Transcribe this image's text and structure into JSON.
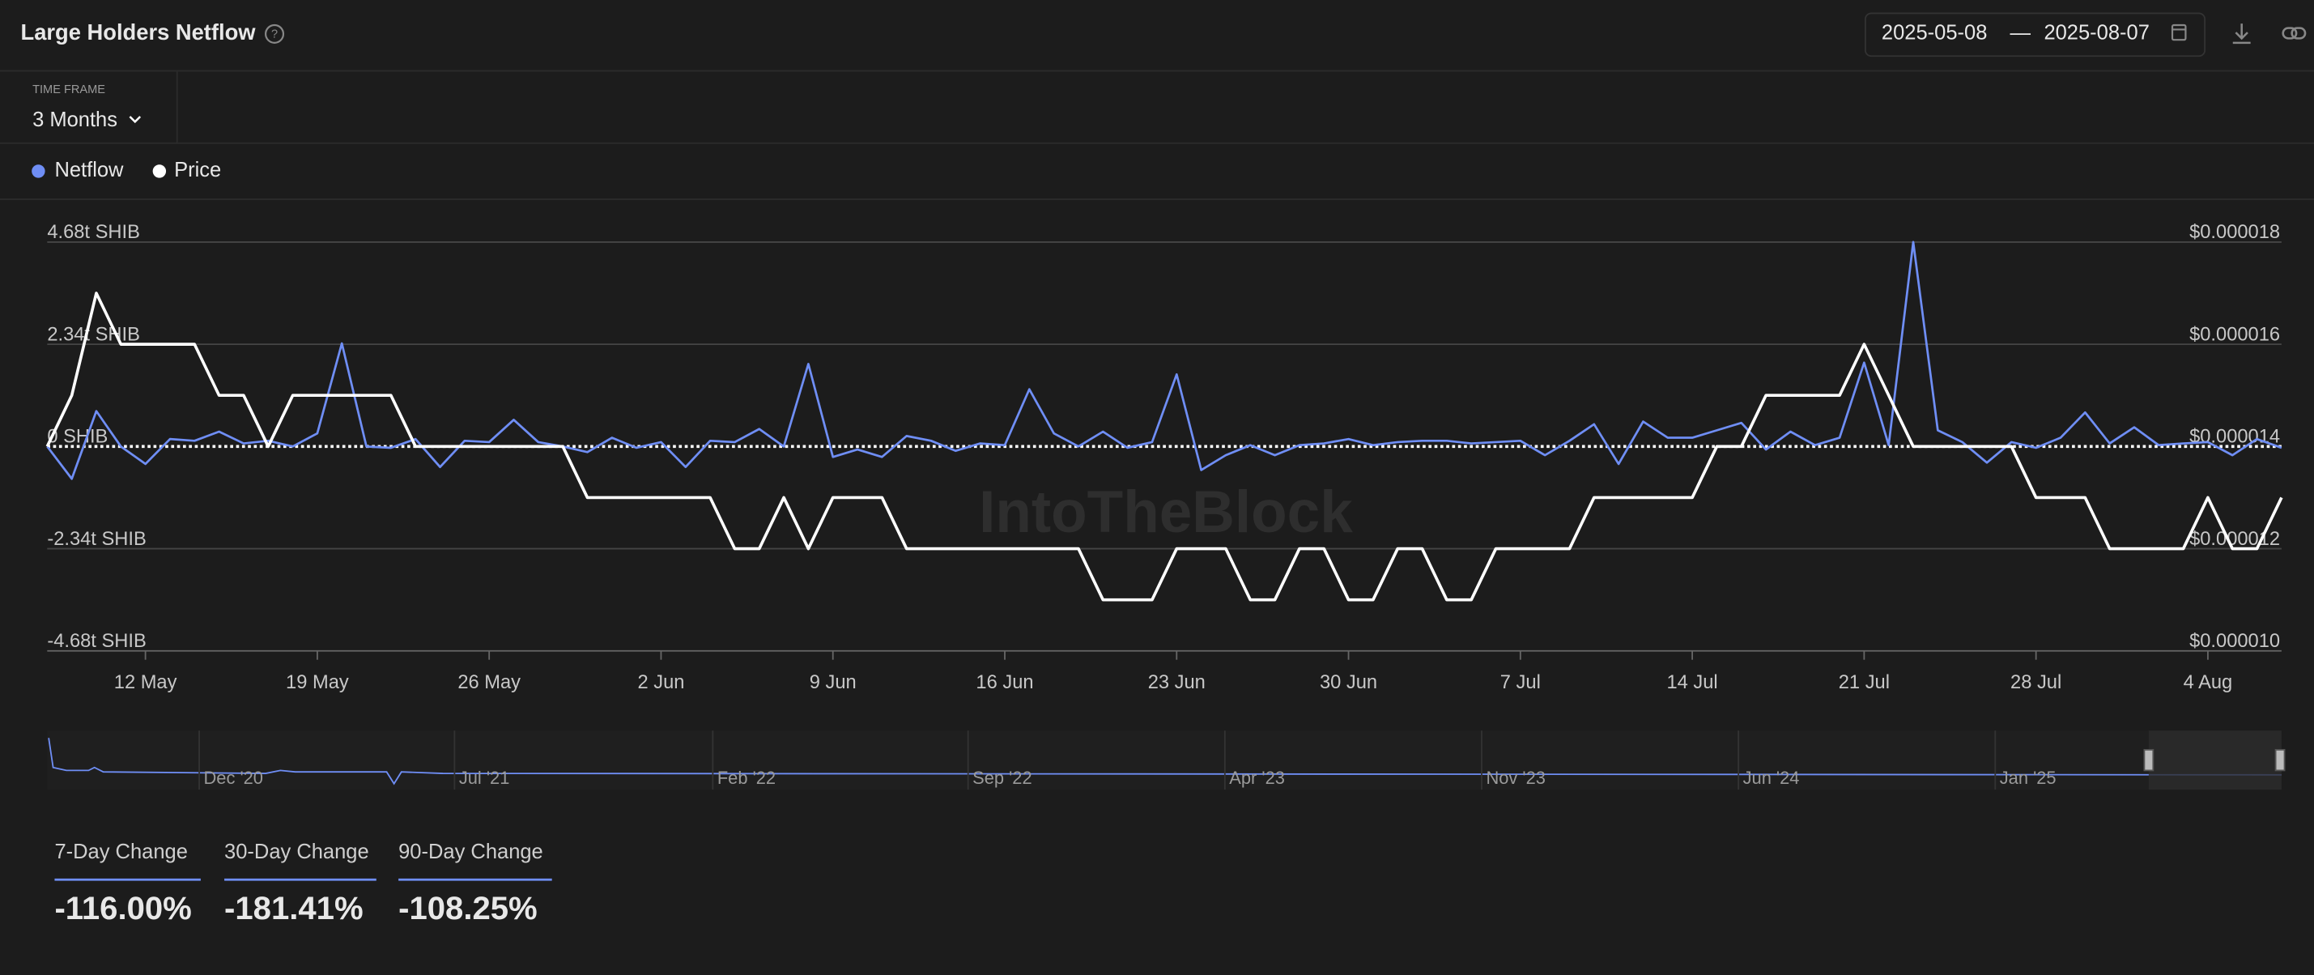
{
  "header": {
    "title": "Large Holders Netflow",
    "date_from": "2025-05-08",
    "date_separator": "—",
    "date_to": "2025-08-07",
    "timeframe_label": "TIME FRAME",
    "timeframe_value": "3 Months"
  },
  "chart_data": {
    "type": "line",
    "categories": [
      null,
      null,
      null,
      null,
      "12 May",
      null,
      null,
      null,
      null,
      null,
      null,
      "19 May",
      null,
      null,
      null,
      null,
      null,
      null,
      "26 May",
      null,
      null,
      null,
      null,
      null,
      null,
      "2 Jun",
      null,
      null,
      null,
      null,
      null,
      null,
      "9 Jun",
      null,
      null,
      null,
      null,
      null,
      null,
      "16 Jun",
      null,
      null,
      null,
      null,
      null,
      null,
      "23 Jun",
      null,
      null,
      null,
      null,
      null,
      null,
      "30 Jun",
      null,
      null,
      null,
      null,
      null,
      null,
      "7 Jul",
      null,
      null,
      null,
      null,
      null,
      null,
      "14 Jul",
      null,
      null,
      null,
      null,
      null,
      null,
      "21 Jul",
      null,
      null,
      null,
      null,
      null,
      null,
      "28 Jul",
      null,
      null,
      null,
      null,
      null,
      null,
      "4 Aug",
      null,
      null,
      null
    ],
    "series": [
      {
        "name": "Netflow",
        "color": "#6f8ef5",
        "values": [
          0,
          -0.74,
          0.81,
          0,
          -0.4,
          0.17,
          0.13,
          0.34,
          0.07,
          0.13,
          0,
          0.3,
          2.36,
          0,
          -0.03,
          0.17,
          -0.47,
          0.13,
          0.1,
          0.61,
          0.1,
          0,
          -0.13,
          0.2,
          -0.03,
          0.1,
          -0.47,
          0.13,
          0.1,
          0.4,
          0,
          1.89,
          -0.24,
          -0.07,
          -0.24,
          0.24,
          0.13,
          -0.1,
          0.07,
          0.03,
          1.31,
          0.3,
          0,
          0.34,
          -0.03,
          0.1,
          1.65,
          -0.54,
          -0.2,
          0.03,
          -0.2,
          0.03,
          0.07,
          0.17,
          0.03,
          0.1,
          0.13,
          0.13,
          0.07,
          0.1,
          0.13,
          -0.2,
          0.13,
          0.51,
          -0.4,
          0.57,
          0.2,
          0.2,
          0.37,
          0.54,
          -0.07,
          0.34,
          0.03,
          0.2,
          1.92,
          0.03,
          4.68,
          0.37,
          0.1,
          -0.37,
          0.1,
          -0.03,
          0.2,
          0.78,
          0.07,
          0.44,
          0.03,
          0.07,
          0.1,
          -0.2,
          0.17,
          -0.03
        ]
      },
      {
        "name": "Price",
        "color": "#ffffff",
        "axis": "y2",
        "values": [
          1.4e-05,
          1.5e-05,
          1.7e-05,
          1.6e-05,
          1.6e-05,
          1.6e-05,
          1.6e-05,
          1.5e-05,
          1.5e-05,
          1.4e-05,
          1.5e-05,
          1.5e-05,
          1.5e-05,
          1.5e-05,
          1.5e-05,
          1.4e-05,
          1.4e-05,
          1.4e-05,
          1.4e-05,
          1.4e-05,
          1.4e-05,
          1.4e-05,
          1.3e-05,
          1.3e-05,
          1.3e-05,
          1.3e-05,
          1.3e-05,
          1.3e-05,
          1.2e-05,
          1.2e-05,
          1.3e-05,
          1.2e-05,
          1.3e-05,
          1.3e-05,
          1.3e-05,
          1.2e-05,
          1.2e-05,
          1.2e-05,
          1.2e-05,
          1.2e-05,
          1.2e-05,
          1.2e-05,
          1.2e-05,
          1.1e-05,
          1.1e-05,
          1.1e-05,
          1.2e-05,
          1.2e-05,
          1.2e-05,
          1.1e-05,
          1.1e-05,
          1.2e-05,
          1.2e-05,
          1.1e-05,
          1.1e-05,
          1.2e-05,
          1.2e-05,
          1.1e-05,
          1.1e-05,
          1.2e-05,
          1.2e-05,
          1.2e-05,
          1.2e-05,
          1.3e-05,
          1.3e-05,
          1.3e-05,
          1.3e-05,
          1.3e-05,
          1.4e-05,
          1.4e-05,
          1.5e-05,
          1.5e-05,
          1.5e-05,
          1.5e-05,
          1.6e-05,
          1.5e-05,
          1.4e-05,
          1.4e-05,
          1.4e-05,
          1.4e-05,
          1.4e-05,
          1.3e-05,
          1.3e-05,
          1.3e-05,
          1.2e-05,
          1.2e-05,
          1.2e-05,
          1.2e-05,
          1.3e-05,
          1.2e-05,
          1.2e-05,
          1.3e-05
        ]
      }
    ],
    "ylim": [
      -4.68,
      4.68
    ],
    "yticks": [
      {
        "value": -4.68,
        "label": "-4.68t SHIB"
      },
      {
        "value": -2.34,
        "label": "-2.34t SHIB"
      },
      {
        "value": 0,
        "label": "0 SHIB"
      },
      {
        "value": 2.34,
        "label": "2.34t SHIB"
      },
      {
        "value": 4.68,
        "label": "4.68t SHIB"
      }
    ],
    "y2lim": [
      1e-05,
      1.8e-05
    ],
    "y2ticks": [
      {
        "value": 1e-05,
        "label": "$0.000010"
      },
      {
        "value": 1.2e-05,
        "label": "$0.000012"
      },
      {
        "value": 1.4e-05,
        "label": "$0.000014"
      },
      {
        "value": 1.6e-05,
        "label": "$0.000016"
      },
      {
        "value": 1.8e-05,
        "label": "$0.000018"
      }
    ],
    "grid": true,
    "legend": "top-left"
  },
  "watermark": "IntoTheBlock",
  "navigator": {
    "labels": [
      "Dec '20",
      "Jul '21",
      "Feb '22",
      "Sep '22",
      "Apr '23",
      "Nov '23",
      "Jun '24",
      "Jan '25"
    ]
  },
  "stats": [
    {
      "label": "7-Day Change",
      "value": "-116.00%"
    },
    {
      "label": "30-Day Change",
      "value": "-181.41%"
    },
    {
      "label": "90-Day Change",
      "value": "-108.25%"
    }
  ]
}
